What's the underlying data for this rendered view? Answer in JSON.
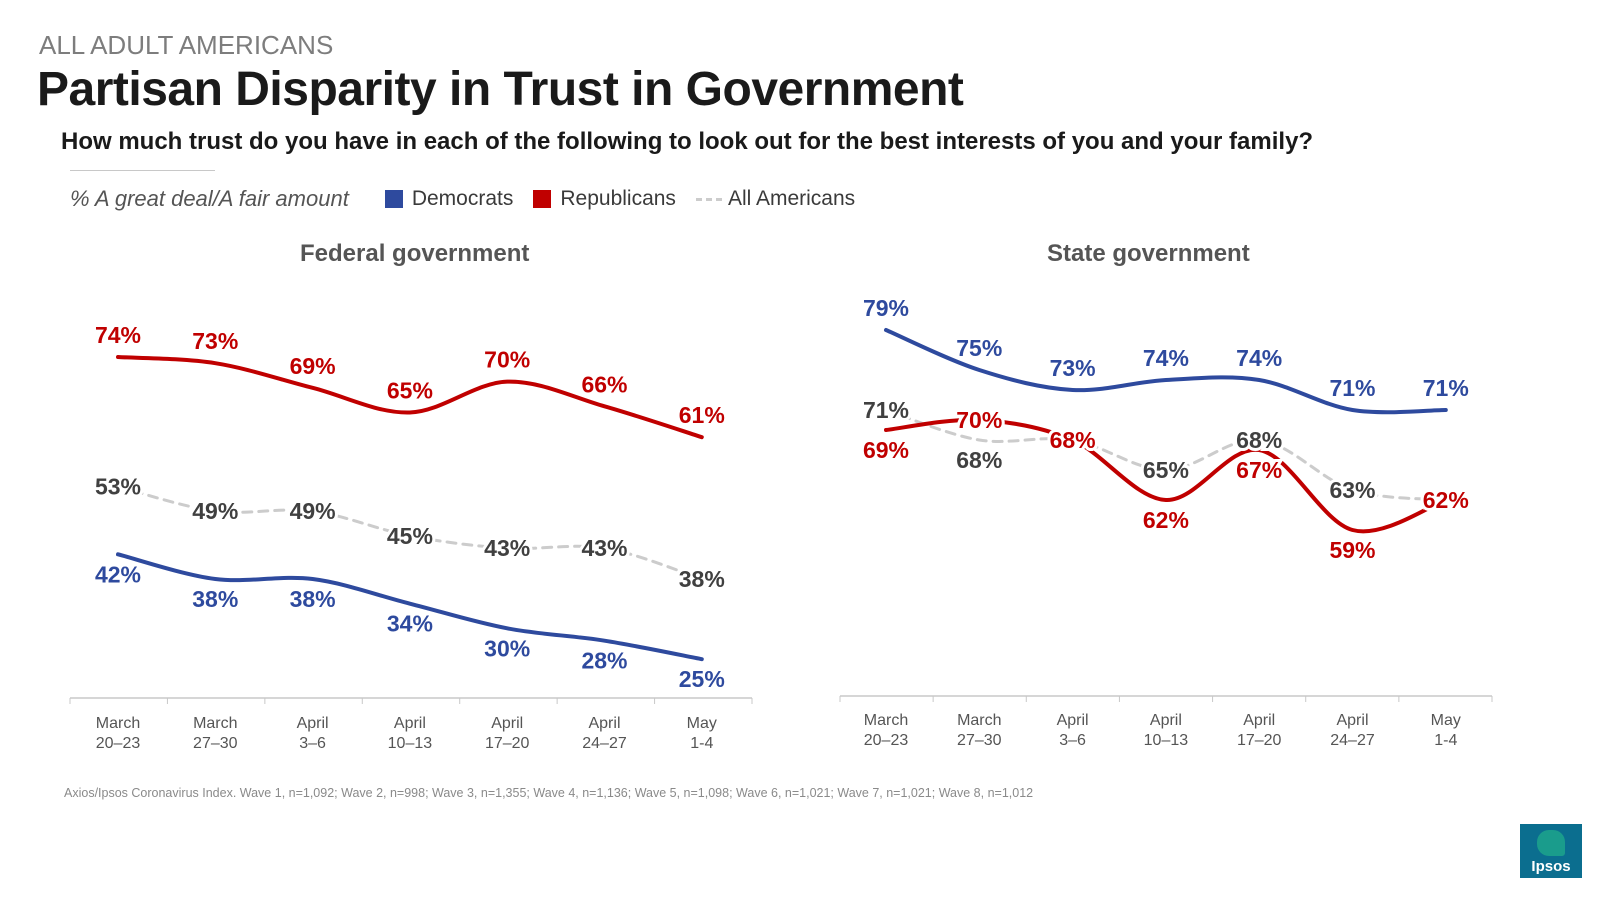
{
  "header": {
    "eyebrow": "ALL ADULT AMERICANS",
    "title": "Partisan Disparity in Trust in Government",
    "question": "How much trust do you have in each of the following to look out for the best interests of you and your family?"
  },
  "legend": {
    "measure": "% A great deal/A fair amount",
    "democrats": "Democrats",
    "republicans": "Republicans",
    "all": "All Americans"
  },
  "colors": {
    "democrats": "#2e4a9e",
    "republicans": "#c00000",
    "all": "#cccccc",
    "label_all": "#404040"
  },
  "source": "Axios/Ipsos Coronavirus Index. Wave 1, n=1,092; Wave 2, n=998; Wave 3, n=1,355; Wave 4, n=1,136; Wave 5, n=1,098; Wave 6, n=1,021; Wave 7, n=1,021; Wave 8, n=1,012",
  "logo": {
    "text": "Ipsos"
  },
  "chart_data": [
    {
      "type": "line",
      "title": "Federal government",
      "categories": [
        [
          "March",
          "20–23"
        ],
        [
          "March",
          "27–30"
        ],
        [
          "April",
          "3–6"
        ],
        [
          "April",
          "10–13"
        ],
        [
          "April",
          "17–20"
        ],
        [
          "April",
          "24–27"
        ],
        [
          "May",
          "1-4"
        ]
      ],
      "series": [
        {
          "name": "Republicans",
          "key": "republicans",
          "values": [
            74,
            73,
            69,
            65,
            70,
            66,
            61
          ]
        },
        {
          "name": "All Americans",
          "key": "all",
          "values": [
            53,
            49,
            49,
            45,
            43,
            43,
            38
          ]
        },
        {
          "name": "Democrats",
          "key": "democrats",
          "values": [
            42,
            38,
            38,
            34,
            30,
            28,
            25
          ]
        }
      ],
      "ylim": [
        20,
        80
      ]
    },
    {
      "type": "line",
      "title": "State government",
      "categories": [
        [
          "March",
          "20–23"
        ],
        [
          "March",
          "27–30"
        ],
        [
          "April",
          "3–6"
        ],
        [
          "April",
          "10–13"
        ],
        [
          "April",
          "17–20"
        ],
        [
          "April",
          "24–27"
        ],
        [
          "May",
          "1-4"
        ]
      ],
      "series": [
        {
          "name": "Democrats",
          "key": "democrats",
          "values": [
            79,
            75,
            73,
            74,
            74,
            71,
            71
          ]
        },
        {
          "name": "All Americans",
          "key": "all",
          "values": [
            71,
            68,
            68,
            65,
            68,
            63,
            62
          ]
        },
        {
          "name": "Republicans",
          "key": "republicans",
          "values": [
            69,
            70,
            68,
            62,
            67,
            59,
            62
          ]
        }
      ],
      "ylim": [
        52,
        82
      ]
    }
  ]
}
